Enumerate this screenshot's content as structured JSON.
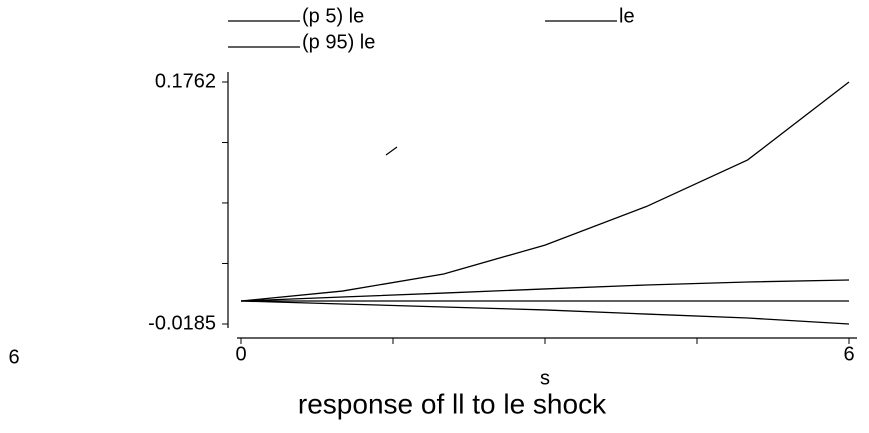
{
  "chart_data": {
    "type": "line",
    "title": "response of ll to le shock",
    "xlabel": "s",
    "side_text": "6",
    "x": [
      0,
      1,
      2,
      3,
      4,
      5,
      6
    ],
    "series": [
      {
        "name": "(p 5) le",
        "color": "#000000",
        "values": [
          0,
          -0.0024,
          -0.0048,
          -0.0072,
          -0.0105,
          -0.0137,
          -0.0185
        ]
      },
      {
        "name": "le",
        "color": "#000000",
        "values": [
          0,
          0.0032,
          0.0064,
          0.0097,
          0.0129,
          0.0153,
          0.0169
        ]
      },
      {
        "name": "(p 95) le",
        "color": "#000000",
        "values": [
          0,
          0.008,
          0.0217,
          0.045,
          0.076,
          0.1135,
          0.1762
        ]
      }
    ],
    "yline": 0,
    "xlim": [
      0,
      6
    ],
    "xticks": [
      0,
      6
    ],
    "xminor_ticks": [
      1.5,
      3,
      4.5
    ],
    "ylim": [
      -0.0185,
      0.1762
    ],
    "yticks": [
      -0.0185,
      0.1762
    ],
    "yminor_ticks": [
      0.0302,
      0.0789,
      0.1275
    ]
  }
}
